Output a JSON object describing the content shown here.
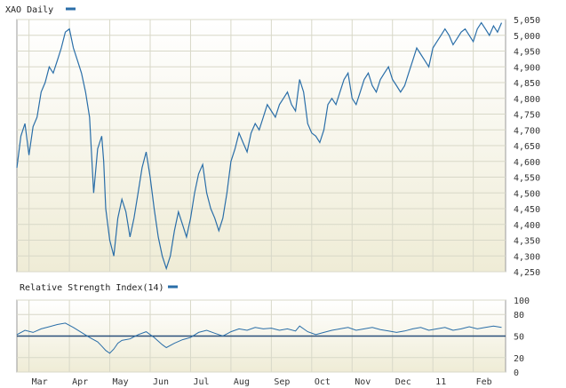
{
  "colors": {
    "series": "#2a6ea8",
    "grid": "#d8d8c8",
    "frame": "#9a9a9a",
    "panel_top": "#ffffff",
    "panel_bottom": "#efecd6",
    "rsi_line": "#2a4f7a"
  },
  "chart_data": [
    {
      "type": "line",
      "title": "XAO Daily",
      "legend_position": "top-left",
      "grid": true,
      "ylim": [
        4250,
        5050
      ],
      "y_ticks": [
        "4,250",
        "4,300",
        "4,350",
        "4,400",
        "4,450",
        "4,500",
        "4,550",
        "4,600",
        "4,650",
        "4,700",
        "4,750",
        "4,800",
        "4,850",
        "4,900",
        "4,950",
        "5,000",
        "5,050"
      ],
      "y_tick_values": [
        4250,
        4300,
        4350,
        4400,
        4450,
        4500,
        4550,
        4600,
        4650,
        4700,
        4750,
        4800,
        4850,
        4900,
        4950,
        5000,
        5050
      ],
      "x_ticks": [
        "Mar",
        "Apr",
        "May",
        "Jun",
        "Jul",
        "Aug",
        "Sep",
        "Oct",
        "Nov",
        "Dec",
        "11",
        "Feb"
      ],
      "x_tick_positions": [
        0.3,
        1.3,
        2.3,
        3.3,
        4.3,
        5.3,
        6.3,
        7.3,
        8.3,
        9.3,
        10.3,
        11.3
      ],
      "x_range": [
        0,
        12.1
      ],
      "series": [
        {
          "name": "XAO Daily",
          "points": [
            [
              0.0,
              4580
            ],
            [
              0.1,
              4680
            ],
            [
              0.2,
              4720
            ],
            [
              0.3,
              4620
            ],
            [
              0.4,
              4710
            ],
            [
              0.5,
              4740
            ],
            [
              0.6,
              4820
            ],
            [
              0.7,
              4850
            ],
            [
              0.8,
              4900
            ],
            [
              0.9,
              4880
            ],
            [
              1.0,
              4920
            ],
            [
              1.1,
              4960
            ],
            [
              1.2,
              5010
            ],
            [
              1.3,
              5020
            ],
            [
              1.4,
              4960
            ],
            [
              1.5,
              4920
            ],
            [
              1.6,
              4880
            ],
            [
              1.7,
              4820
            ],
            [
              1.8,
              4740
            ],
            [
              1.9,
              4500
            ],
            [
              2.0,
              4640
            ],
            [
              2.1,
              4680
            ],
            [
              2.15,
              4600
            ],
            [
              2.2,
              4450
            ],
            [
              2.3,
              4350
            ],
            [
              2.4,
              4300
            ],
            [
              2.5,
              4420
            ],
            [
              2.6,
              4480
            ],
            [
              2.7,
              4440
            ],
            [
              2.8,
              4360
            ],
            [
              2.9,
              4420
            ],
            [
              3.0,
              4500
            ],
            [
              3.1,
              4580
            ],
            [
              3.2,
              4630
            ],
            [
              3.3,
              4550
            ],
            [
              3.4,
              4450
            ],
            [
              3.5,
              4360
            ],
            [
              3.6,
              4300
            ],
            [
              3.7,
              4260
            ],
            [
              3.8,
              4300
            ],
            [
              3.9,
              4380
            ],
            [
              4.0,
              4440
            ],
            [
              4.1,
              4400
            ],
            [
              4.2,
              4360
            ],
            [
              4.3,
              4420
            ],
            [
              4.4,
              4500
            ],
            [
              4.5,
              4560
            ],
            [
              4.6,
              4590
            ],
            [
              4.7,
              4500
            ],
            [
              4.8,
              4450
            ],
            [
              4.9,
              4420
            ],
            [
              5.0,
              4380
            ],
            [
              5.1,
              4420
            ],
            [
              5.2,
              4500
            ],
            [
              5.3,
              4600
            ],
            [
              5.4,
              4640
            ],
            [
              5.5,
              4690
            ],
            [
              5.6,
              4660
            ],
            [
              5.7,
              4630
            ],
            [
              5.8,
              4690
            ],
            [
              5.9,
              4720
            ],
            [
              6.0,
              4700
            ],
            [
              6.1,
              4740
            ],
            [
              6.2,
              4780
            ],
            [
              6.3,
              4760
            ],
            [
              6.4,
              4740
            ],
            [
              6.5,
              4780
            ],
            [
              6.6,
              4800
            ],
            [
              6.7,
              4820
            ],
            [
              6.8,
              4780
            ],
            [
              6.9,
              4760
            ],
            [
              7.0,
              4860
            ],
            [
              7.1,
              4820
            ],
            [
              7.2,
              4720
            ],
            [
              7.3,
              4690
            ],
            [
              7.4,
              4680
            ],
            [
              7.5,
              4660
            ],
            [
              7.6,
              4700
            ],
            [
              7.7,
              4780
            ],
            [
              7.8,
              4800
            ],
            [
              7.9,
              4780
            ],
            [
              8.0,
              4820
            ],
            [
              8.1,
              4860
            ],
            [
              8.2,
              4880
            ],
            [
              8.3,
              4800
            ],
            [
              8.4,
              4780
            ],
            [
              8.5,
              4820
            ],
            [
              8.6,
              4860
            ],
            [
              8.7,
              4880
            ],
            [
              8.8,
              4840
            ],
            [
              8.9,
              4820
            ],
            [
              9.0,
              4860
            ],
            [
              9.1,
              4880
            ],
            [
              9.2,
              4900
            ],
            [
              9.3,
              4860
            ],
            [
              9.4,
              4840
            ],
            [
              9.5,
              4820
            ],
            [
              9.6,
              4840
            ],
            [
              9.7,
              4880
            ],
            [
              9.8,
              4920
            ],
            [
              9.9,
              4960
            ],
            [
              10.0,
              4940
            ],
            [
              10.1,
              4920
            ],
            [
              10.2,
              4900
            ],
            [
              10.3,
              4960
            ],
            [
              10.4,
              4980
            ],
            [
              10.5,
              5000
            ],
            [
              10.6,
              5020
            ],
            [
              10.7,
              5000
            ],
            [
              10.8,
              4970
            ],
            [
              10.9,
              4990
            ],
            [
              11.0,
              5010
            ],
            [
              11.1,
              5020
            ],
            [
              11.2,
              5000
            ],
            [
              11.3,
              4980
            ],
            [
              11.4,
              5020
            ],
            [
              11.5,
              5040
            ],
            [
              11.6,
              5020
            ],
            [
              11.7,
              5000
            ],
            [
              11.8,
              5030
            ],
            [
              11.9,
              5010
            ],
            [
              12.0,
              5040
            ]
          ]
        }
      ]
    },
    {
      "type": "line",
      "title": "Relative Strength Index(14)",
      "legend_position": "top-left",
      "grid": true,
      "ylim": [
        0,
        100
      ],
      "y_ticks": [
        "0",
        "20",
        "50",
        "80",
        "100"
      ],
      "y_tick_values": [
        0,
        20,
        50,
        80,
        100
      ],
      "reference_line": 50,
      "x_range": [
        0,
        12.1
      ],
      "series": [
        {
          "name": "Relative Strength Index(14)",
          "points": [
            [
              0.0,
              52
            ],
            [
              0.2,
              58
            ],
            [
              0.4,
              55
            ],
            [
              0.6,
              60
            ],
            [
              0.8,
              63
            ],
            [
              1.0,
              66
            ],
            [
              1.2,
              68
            ],
            [
              1.4,
              62
            ],
            [
              1.6,
              55
            ],
            [
              1.8,
              48
            ],
            [
              2.0,
              42
            ],
            [
              2.1,
              36
            ],
            [
              2.2,
              30
            ],
            [
              2.3,
              26
            ],
            [
              2.4,
              32
            ],
            [
              2.5,
              40
            ],
            [
              2.6,
              44
            ],
            [
              2.8,
              46
            ],
            [
              3.0,
              52
            ],
            [
              3.2,
              56
            ],
            [
              3.4,
              48
            ],
            [
              3.6,
              38
            ],
            [
              3.7,
              34
            ],
            [
              3.9,
              40
            ],
            [
              4.1,
              45
            ],
            [
              4.3,
              48
            ],
            [
              4.5,
              55
            ],
            [
              4.7,
              58
            ],
            [
              4.9,
              54
            ],
            [
              5.1,
              50
            ],
            [
              5.3,
              56
            ],
            [
              5.5,
              60
            ],
            [
              5.7,
              58
            ],
            [
              5.9,
              62
            ],
            [
              6.1,
              60
            ],
            [
              6.3,
              61
            ],
            [
              6.5,
              58
            ],
            [
              6.7,
              60
            ],
            [
              6.9,
              57
            ],
            [
              7.0,
              64
            ],
            [
              7.2,
              56
            ],
            [
              7.4,
              52
            ],
            [
              7.6,
              55
            ],
            [
              7.8,
              58
            ],
            [
              8.0,
              60
            ],
            [
              8.2,
              62
            ],
            [
              8.4,
              58
            ],
            [
              8.6,
              60
            ],
            [
              8.8,
              62
            ],
            [
              9.0,
              59
            ],
            [
              9.2,
              57
            ],
            [
              9.4,
              55
            ],
            [
              9.6,
              57
            ],
            [
              9.8,
              60
            ],
            [
              10.0,
              62
            ],
            [
              10.2,
              58
            ],
            [
              10.4,
              60
            ],
            [
              10.6,
              62
            ],
            [
              10.8,
              58
            ],
            [
              11.0,
              60
            ],
            [
              11.2,
              63
            ],
            [
              11.4,
              60
            ],
            [
              11.6,
              62
            ],
            [
              11.8,
              64
            ],
            [
              12.0,
              62
            ]
          ]
        }
      ]
    }
  ]
}
